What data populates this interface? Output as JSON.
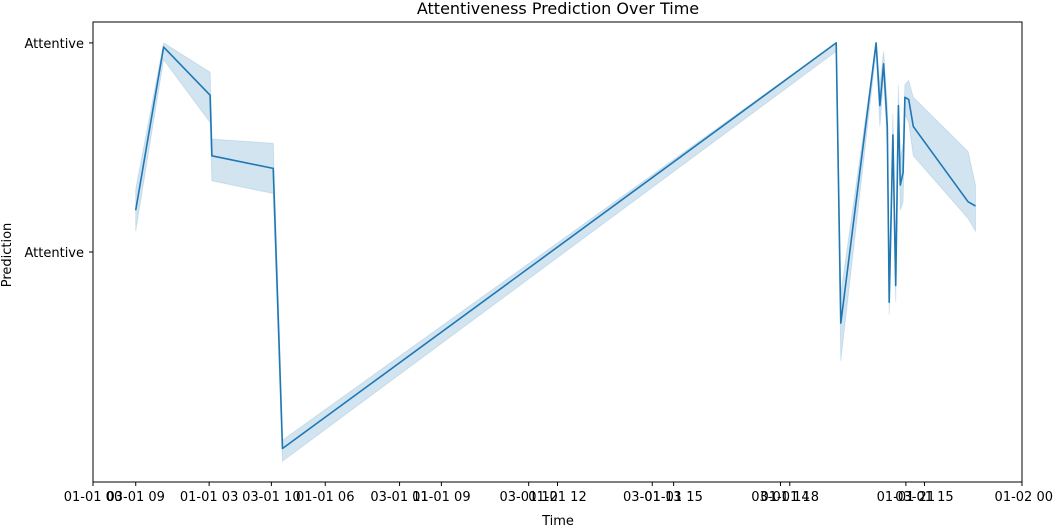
{
  "chart_data": {
    "type": "line",
    "title": "Attentiveness Prediction Over Time",
    "xlabel": "Time",
    "ylabel": "Prediction",
    "x_tick_labels": [
      "01-01 00",
      "03-01 09",
      "01-01 03",
      "03-01 10",
      "01-01 06",
      "03-01 11",
      "01-01 09",
      "03-01 12",
      "01-01 12",
      "03-01 13",
      "01-01 15",
      "03-01 14",
      "01-01 18",
      "01-01 21",
      "03-01 15",
      "01-02 00"
    ],
    "x_tick_positions": [
      0,
      0.046,
      0.125,
      0.192,
      0.25,
      0.33,
      0.375,
      0.469,
      0.5,
      0.602,
      0.625,
      0.74,
      0.75,
      0.875,
      0.895,
      1.0
    ],
    "y_tick_labels": [
      "Attentive",
      "Attentive"
    ],
    "y_tick_values": [
      0.0,
      -0.5
    ],
    "ylim": [
      -1.05,
      0.05
    ],
    "grid": false,
    "series": [
      {
        "color": "#1f77b4",
        "x": [
          0.046,
          0.076,
          0.126,
          0.128,
          0.194,
          0.2,
          0.204,
          0.8,
          0.805,
          0.843,
          0.847,
          0.851,
          0.855,
          0.857,
          0.861,
          0.864,
          0.867,
          0.869,
          0.872,
          0.874,
          0.878,
          0.883,
          0.942,
          0.95
        ],
        "y": [
          -0.4,
          -0.01,
          -0.125,
          -0.27,
          -0.3,
          -0.7,
          -0.97,
          0.0,
          -0.67,
          0.0,
          -0.15,
          -0.05,
          -0.2,
          -0.62,
          -0.22,
          -0.58,
          -0.15,
          -0.34,
          -0.31,
          -0.13,
          -0.135,
          -0.2,
          -0.38,
          -0.39
        ],
        "band_low": [
          -0.45,
          -0.04,
          -0.19,
          -0.33,
          -0.36,
          -0.75,
          -1.0,
          -0.02,
          -0.76,
          -0.02,
          -0.2,
          -0.08,
          -0.25,
          -0.65,
          -0.27,
          -0.62,
          -0.2,
          -0.4,
          -0.38,
          -0.17,
          -0.19,
          -0.27,
          -0.42,
          -0.45
        ],
        "band_high": [
          -0.35,
          0.0,
          -0.07,
          -0.23,
          -0.24,
          -0.65,
          -0.95,
          0.0,
          -0.6,
          0.0,
          -0.1,
          -0.02,
          -0.15,
          -0.58,
          -0.17,
          -0.54,
          -0.1,
          -0.28,
          -0.24,
          -0.1,
          -0.09,
          -0.13,
          -0.26,
          -0.34
        ]
      }
    ]
  }
}
